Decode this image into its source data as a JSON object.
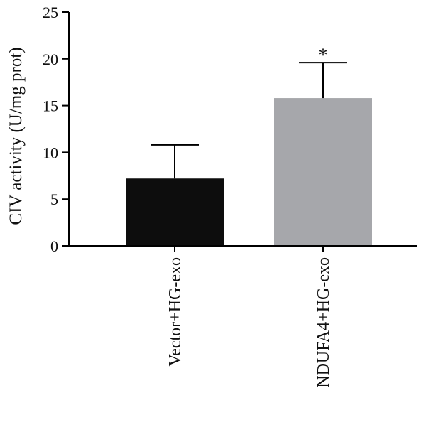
{
  "chart_data": {
    "type": "bar",
    "ylabel": "CIV activity (U/mg prot)",
    "xlabel": "",
    "ylim": [
      0,
      25
    ],
    "yticks": [
      "0",
      "5",
      "10",
      "15",
      "20",
      "25"
    ],
    "categories": [
      "Vector+HG-exo",
      "NDUFA4+HG-exo"
    ],
    "values": [
      7.2,
      15.8
    ],
    "error_upper": [
      10.8,
      19.6
    ],
    "significance": [
      "",
      "*"
    ],
    "bar_colors": [
      "#0d0d0d",
      "#a6a7ab"
    ],
    "grid": false,
    "legend": "none"
  }
}
